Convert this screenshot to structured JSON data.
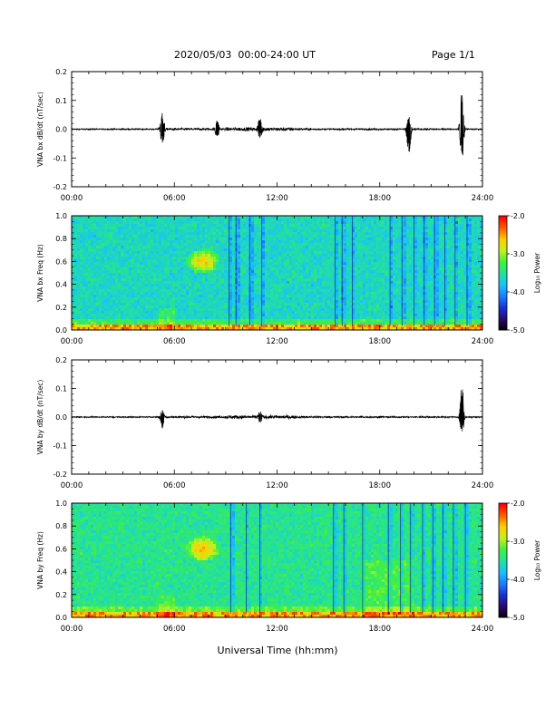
{
  "header": {
    "title": "2020/05/03  00:00-24:00 UT",
    "page": "Page 1/1"
  },
  "xaxis_title": "Universal Time (hh:mm)",
  "colors": {
    "trace": "#000000",
    "spectrogram_ramp": [
      "#000000",
      "#2a0a6a",
      "#1a2fd0",
      "#1f7aff",
      "#19c0ff",
      "#22e0a0",
      "#40f040",
      "#c0f020",
      "#ffd000",
      "#ff6000",
      "#ff0000"
    ]
  },
  "chart_data": [
    {
      "type": "line",
      "ylabel": "VNA bx dB/dt (nT/sec)",
      "x_ticks": [
        "00:00",
        "06:00",
        "12:00",
        "18:00",
        "24:00"
      ],
      "xlim": [
        0,
        24
      ],
      "ylim": [
        -0.2,
        0.2
      ],
      "y_ticks": [
        "0.2",
        "0.1",
        "0.0",
        "-0.1",
        "-0.2"
      ],
      "baseline": 0.0,
      "bursts": [
        {
          "t": 5.3,
          "max": 0.06,
          "min": -0.06
        },
        {
          "t": 8.5,
          "max": 0.03,
          "min": -0.03
        },
        {
          "t": 11.0,
          "max": 0.04,
          "min": -0.04
        },
        {
          "t": 19.7,
          "max": 0.05,
          "min": -0.1
        },
        {
          "t": 22.8,
          "max": 0.14,
          "min": -0.12
        }
      ]
    },
    {
      "type": "heatmap",
      "ylabel": "VNA bx Freq (Hz)",
      "x_ticks": [
        "00:00",
        "06:00",
        "12:00",
        "18:00",
        "24:00"
      ],
      "xlim": [
        0,
        24
      ],
      "ylim": [
        0.0,
        1.0
      ],
      "y_ticks": [
        "1.0",
        "0.8",
        "0.6",
        "0.4",
        "0.2",
        "0.0"
      ],
      "colorbar": {
        "label": "Log₁₀ Power",
        "ticks": [
          "-2.0",
          "-3.0",
          "-4.0",
          "-5.0"
        ],
        "range": [
          -5.0,
          -2.0
        ]
      }
    },
    {
      "type": "line",
      "ylabel": "VNA by dB/dt (nT/sec)",
      "x_ticks": [
        "00:00",
        "06:00",
        "12:00",
        "18:00",
        "24:00"
      ],
      "xlim": [
        0,
        24
      ],
      "ylim": [
        -0.2,
        0.2
      ],
      "y_ticks": [
        "0.2",
        "0.1",
        "0.0",
        "-0.1",
        "-0.2"
      ],
      "baseline": 0.0,
      "bursts": [
        {
          "t": 5.3,
          "max": 0.03,
          "min": -0.04
        },
        {
          "t": 11.0,
          "max": 0.02,
          "min": -0.02
        },
        {
          "t": 22.8,
          "max": 0.12,
          "min": -0.07
        }
      ]
    },
    {
      "type": "heatmap",
      "ylabel": "VNA by Freq (Hz)",
      "x_ticks": [
        "00:00",
        "06:00",
        "12:00",
        "18:00",
        "24:00"
      ],
      "xlim": [
        0,
        24
      ],
      "ylim": [
        0.0,
        1.0
      ],
      "y_ticks": [
        "1.0",
        "0.8",
        "0.6",
        "0.4",
        "0.2",
        "0.0"
      ],
      "colorbar": {
        "label": "Log₁₀ Power",
        "ticks": [
          "-2.0",
          "-3.0",
          "-4.0",
          "-5.0"
        ],
        "range": [
          -5.0,
          -2.0
        ]
      }
    }
  ]
}
